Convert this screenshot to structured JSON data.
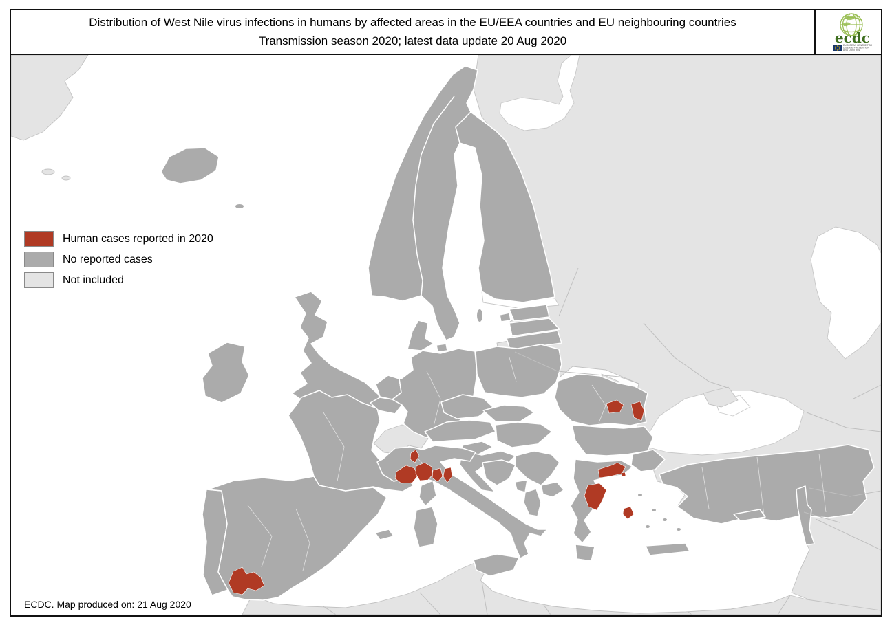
{
  "title": {
    "line1": "Distribution of West Nile virus infections in humans by affected areas in the EU/EEA countries and EU neighbouring countries",
    "line2": "Transmission season 2020; latest data update 20 Aug 2020"
  },
  "logo": {
    "acronym": "ecdc",
    "caption_lines": [
      "EUROPEAN CENTRE FOR",
      "DISEASE PREVENTION",
      "AND CONTROL"
    ]
  },
  "legend": {
    "items": [
      {
        "label": "Human cases reported in 2020",
        "color": "#B03A24"
      },
      {
        "label": "No reported cases",
        "color": "#ABABAB"
      },
      {
        "label": "Not included",
        "color": "#E4E4E4"
      }
    ]
  },
  "map": {
    "sea_color": "#FFFFFF",
    "country_border_color": "#FFFFFF",
    "affected_area_paths": [
      "M 332,848 L 339,831 L 352,825 L 358,835 L 369,832 L 379,840 L 384,852 L 372,859 L 360,856 L 352,865 L 339,862 Z",
      "M 576,686 L 590,677 L 602,681 L 607,692 L 599,702 L 583,703 L 574,696 Z",
      "M 597,659 L 604,654 L 609,663 L 603,673 L 596,668 Z",
      "M 605,678 L 617,673 L 627,679 L 629,690 L 622,698 L 610,699 L 604,689 Z",
      "M 629,684 L 640,681 L 643,693 L 636,701 L 628,695 Z",
      "M 646,682 L 655,680 L 657,693 L 650,702 L 644,693 Z",
      "M 881,587 L 896,582 L 906,589 L 901,599 L 885,601 Z",
      "M 917,588 L 930,584 L 936,597 L 932,612 L 921,607 Z",
      "M 869,683 L 888,677 L 897,673 L 909,679 L 903,689 L 886,693 L 871,695 Z",
      "M 903,688 L 908,687 L 909,692 L 904,693 Z",
      "M 854,706 L 871,703 L 881,713 L 875,728 L 867,742 L 855,737 L 849,721 Z",
      "M 906,740 L 916,737 L 921,748 L 912,755 L 905,748 Z"
    ]
  },
  "footer": {
    "text": "ECDC. Map produced on: 21 Aug 2020"
  }
}
